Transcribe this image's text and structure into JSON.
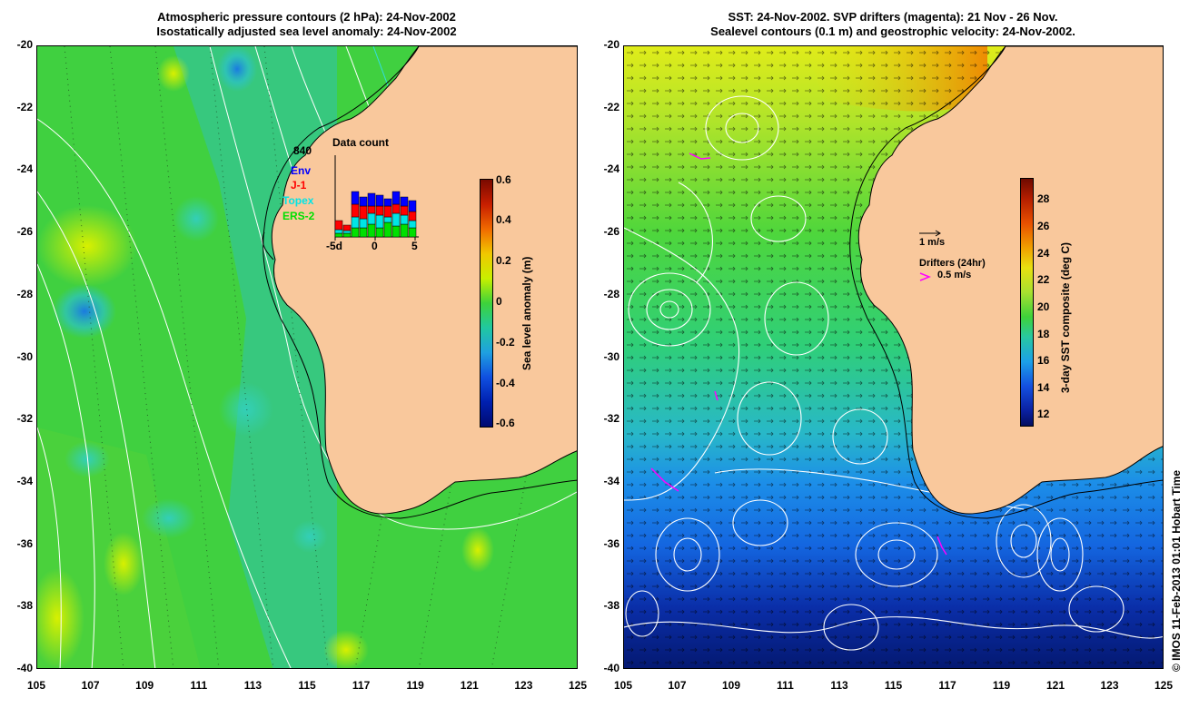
{
  "left_panel": {
    "title_line1": "Atmospheric pressure contours (2 hPa): 24-Nov-2002",
    "title_line2": "Isostatically adjusted sea level anomaly: 24-Nov-2002",
    "colorbar_label": "Sea level anomaly (m)",
    "colorbar_ticks": [
      "0.6",
      "0.4",
      "0.2",
      "0",
      "-0.2",
      "-0.4",
      "-0.6"
    ],
    "data_count": {
      "title": "Data count",
      "max_label": "840",
      "x_ticks": [
        "-5d",
        "0",
        "5"
      ],
      "legend": [
        {
          "label": "Env",
          "color": "#0000ff"
        },
        {
          "label": "J-1",
          "color": "#ff0000"
        },
        {
          "label": "Topex",
          "color": "#00e5e5"
        },
        {
          "label": "ERS-2",
          "color": "#00e000"
        }
      ]
    }
  },
  "right_panel": {
    "title_line1": "SST: 24-Nov-2002. SVP drifters (magenta): 21 Nov - 26 Nov.",
    "title_line2": "Sealevel contours (0.1 m) and geostrophic velocity: 24-Nov-2002.",
    "colorbar_label": "3-day SST composite (deg C)",
    "colorbar_ticks": [
      "28",
      "26",
      "24",
      "22",
      "20",
      "18",
      "16",
      "14",
      "12"
    ],
    "velocity_scale_label": "1 m/s",
    "drifters_label": "Drifters (24hr)",
    "drifters_scale_label": "0.5 m/s"
  },
  "axes": {
    "y_ticks": [
      "-20",
      "-22",
      "-24",
      "-26",
      "-28",
      "-30",
      "-32",
      "-34",
      "-36",
      "-38",
      "-40"
    ],
    "x_ticks": [
      "105",
      "107",
      "109",
      "111",
      "113",
      "115",
      "117",
      "119",
      "121",
      "123",
      "125"
    ]
  },
  "credit": "© IMOS 11-Feb-2013 01:01 Hobart Time",
  "colors": {
    "land": "#f9c89c",
    "ocean_green": "#3ecf3a",
    "contour": "#ffffff",
    "pressure_contour": "#33dde0",
    "drifter": "#ff00ff"
  }
}
